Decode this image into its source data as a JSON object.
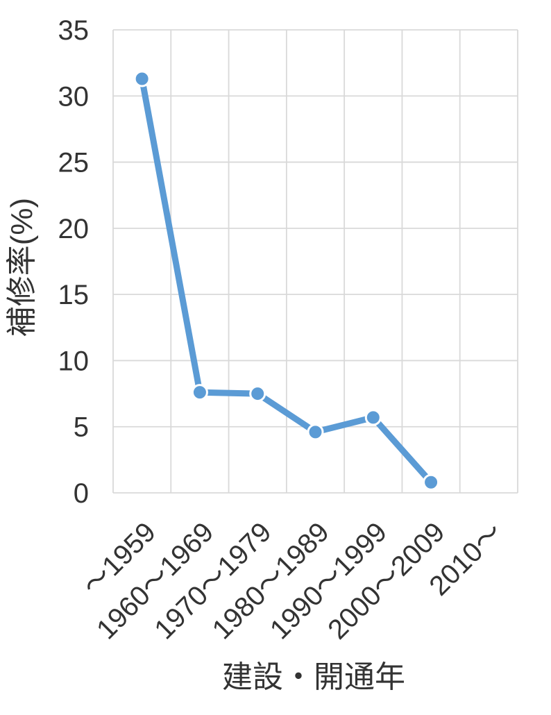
{
  "chart_data": {
    "type": "line",
    "categories": [
      "～1959",
      "1960～1969",
      "1970～1979",
      "1980～1989",
      "1990～1999",
      "2000～2009",
      "2010～"
    ],
    "series": [
      {
        "name": "補修率",
        "values": [
          31.3,
          7.6,
          7.5,
          4.6,
          5.7,
          0.8,
          null
        ]
      }
    ],
    "title": "",
    "xlabel": "建設・開通年",
    "ylabel": "補修率(%)",
    "ylim": [
      0,
      35
    ],
    "yticks": [
      0,
      5,
      10,
      15,
      20,
      25,
      30,
      35
    ],
    "grid": true,
    "legend": false,
    "colors": {
      "line": "#5B9BD5",
      "marker": "#5B9BD5",
      "marker_edge": "#FFFFFF",
      "gridline": "#D9D9D9",
      "text": "#333333",
      "background": "#FFFFFF"
    }
  }
}
